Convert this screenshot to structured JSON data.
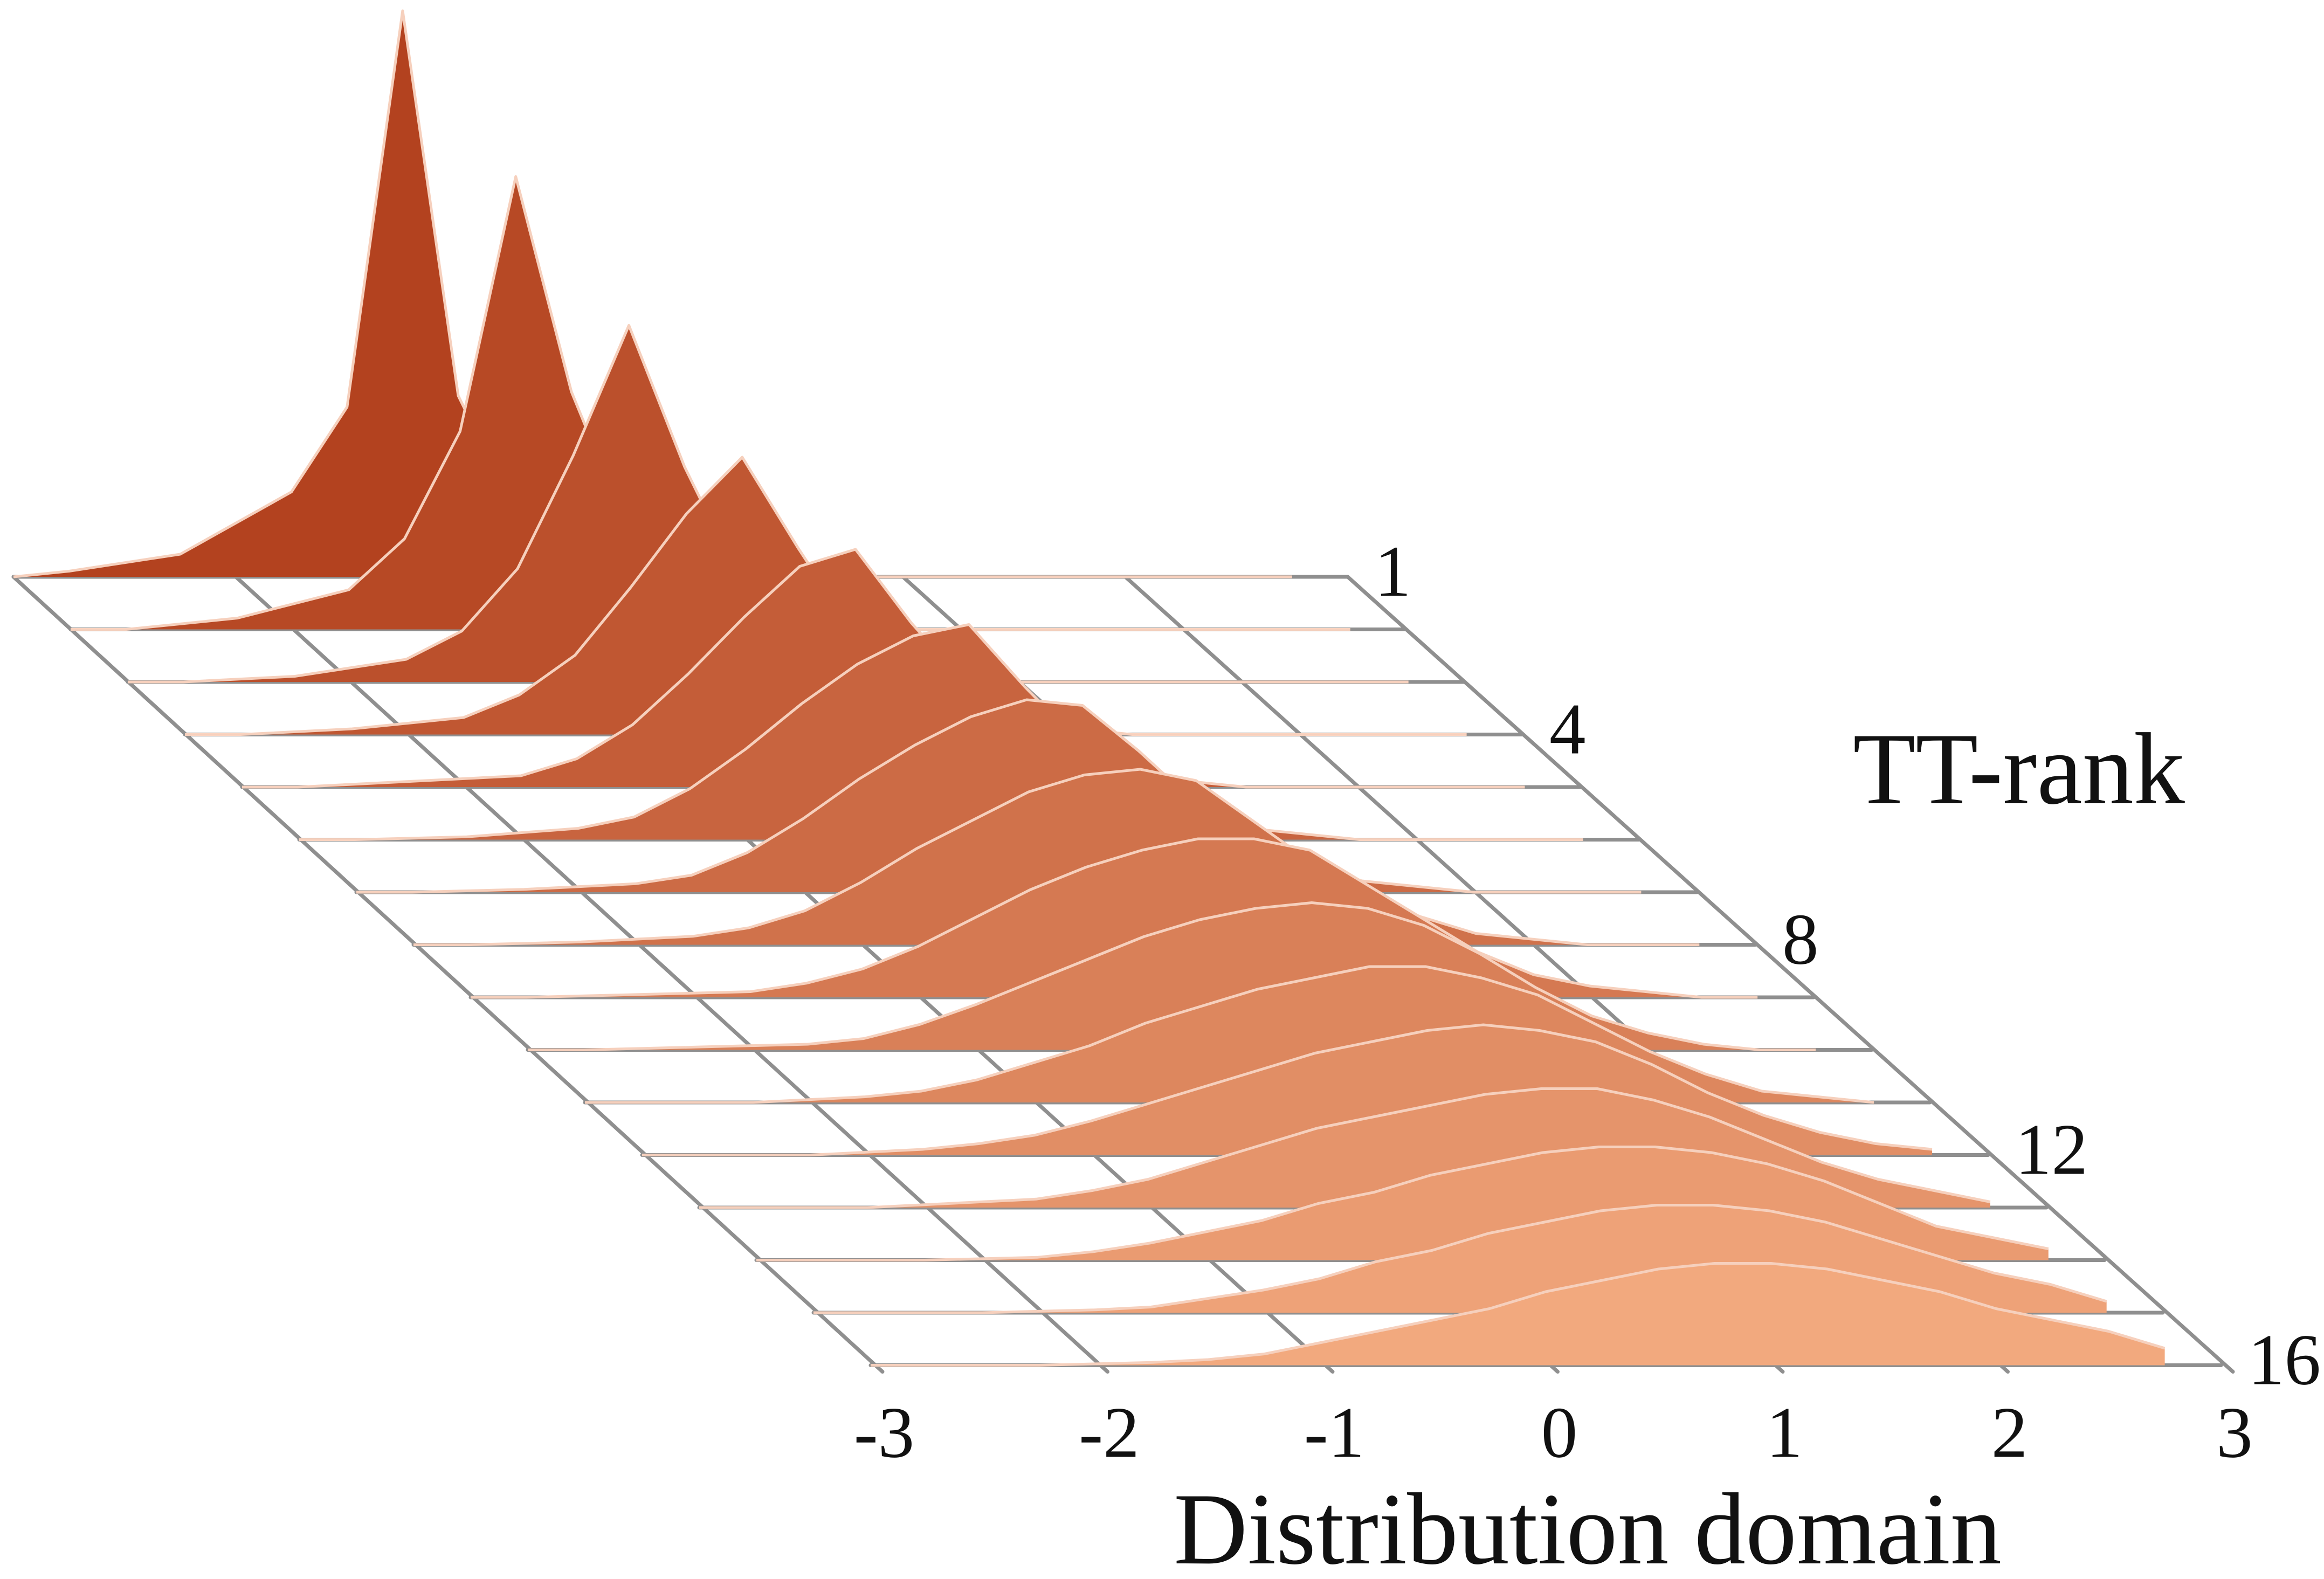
{
  "chart_data": {
    "type": "ridgeline",
    "xlabel": "Distribution domain",
    "ylabel": "TT-rank",
    "xlim": [
      -3,
      3
    ],
    "x_ticks": [
      "-3",
      "-2",
      "-1",
      "0",
      "1",
      "2",
      "3"
    ],
    "rank_ticks": [
      {
        "rank": 1,
        "label": "1"
      },
      {
        "rank": 4,
        "label": "4"
      },
      {
        "rank": 8,
        "label": "8"
      },
      {
        "rank": 12,
        "label": "12"
      },
      {
        "rank": 16,
        "label": "16"
      }
    ],
    "colors": {
      "rank_low": "#b3421f",
      "rank_high": "#f2a97e",
      "grid": "#8f8f8f"
    },
    "x": [
      -2.75,
      -2.25,
      -1.75,
      -1.5,
      -1.25,
      -1.0,
      -0.75,
      -0.5,
      -0.25,
      0.0,
      0.25,
      0.5,
      0.75,
      1.0,
      1.25,
      1.5,
      1.75,
      2.0,
      2.25,
      2.5,
      2.75
    ],
    "series": [
      {
        "rank": 1,
        "values": [
          0.01,
          0.04,
          0.15,
          0.3,
          1.0,
          0.32,
          0.12,
          0.04,
          0.015,
          0.005,
          0,
          0,
          0,
          0,
          0,
          0,
          0,
          0,
          0,
          0,
          0
        ]
      },
      {
        "rank": 2,
        "values": [
          0,
          0.02,
          0.07,
          0.16,
          0.35,
          0.8,
          0.42,
          0.18,
          0.07,
          0.03,
          0.01,
          0,
          0,
          0,
          0,
          0,
          0,
          0,
          0,
          0,
          0
        ]
      },
      {
        "rank": 3,
        "values": [
          0,
          0.01,
          0.04,
          0.09,
          0.2,
          0.4,
          0.63,
          0.38,
          0.18,
          0.09,
          0.04,
          0.015,
          0.005,
          0,
          0,
          0,
          0,
          0,
          0,
          0,
          0
        ]
      },
      {
        "rank": 4,
        "values": [
          0,
          0.01,
          0.03,
          0.07,
          0.14,
          0.26,
          0.39,
          0.49,
          0.33,
          0.18,
          0.1,
          0.05,
          0.02,
          0.01,
          0,
          0,
          0,
          0,
          0,
          0,
          0
        ]
      },
      {
        "rank": 5,
        "values": [
          0,
          0.01,
          0.02,
          0.05,
          0.11,
          0.2,
          0.3,
          0.39,
          0.42,
          0.29,
          0.18,
          0.1,
          0.05,
          0.02,
          0.01,
          0,
          0,
          0,
          0,
          0,
          0
        ]
      },
      {
        "rank": 6,
        "values": [
          0,
          0.005,
          0.02,
          0.04,
          0.09,
          0.16,
          0.24,
          0.31,
          0.36,
          0.38,
          0.27,
          0.17,
          0.1,
          0.05,
          0.02,
          0.01,
          0,
          0,
          0,
          0,
          0
        ]
      },
      {
        "rank": 7,
        "values": [
          0,
          0.005,
          0.015,
          0.03,
          0.07,
          0.13,
          0.2,
          0.26,
          0.31,
          0.34,
          0.33,
          0.25,
          0.16,
          0.1,
          0.05,
          0.02,
          0.01,
          0,
          0,
          0,
          0
        ]
      },
      {
        "rank": 8,
        "values": [
          0,
          0.005,
          0.015,
          0.03,
          0.06,
          0.11,
          0.17,
          0.22,
          0.27,
          0.3,
          0.31,
          0.29,
          0.22,
          0.15,
          0.09,
          0.05,
          0.02,
          0.01,
          0,
          0,
          0
        ]
      },
      {
        "rank": 9,
        "values": [
          0,
          0.005,
          0.01,
          0.025,
          0.05,
          0.09,
          0.14,
          0.19,
          0.23,
          0.26,
          0.28,
          0.28,
          0.26,
          0.2,
          0.14,
          0.08,
          0.04,
          0.02,
          0.01,
          0,
          0
        ]
      },
      {
        "rank": 10,
        "values": [
          0,
          0.005,
          0.01,
          0.02,
          0.045,
          0.08,
          0.12,
          0.16,
          0.2,
          0.23,
          0.25,
          0.26,
          0.25,
          0.22,
          0.17,
          0.11,
          0.06,
          0.03,
          0.01,
          0,
          0
        ]
      },
      {
        "rank": 11,
        "values": [
          0,
          0,
          0.01,
          0.02,
          0.04,
          0.07,
          0.1,
          0.14,
          0.17,
          0.2,
          0.22,
          0.24,
          0.24,
          0.22,
          0.19,
          0.14,
          0.09,
          0.05,
          0.02,
          0.01,
          0
        ]
      },
      {
        "rank": 12,
        "values": [
          0,
          0,
          0.01,
          0.02,
          0.035,
          0.06,
          0.09,
          0.12,
          0.15,
          0.18,
          0.2,
          0.22,
          0.23,
          0.22,
          0.2,
          0.16,
          0.11,
          0.07,
          0.04,
          0.02,
          0.01
        ]
      },
      {
        "rank": 13,
        "values": [
          0,
          0,
          0.01,
          0.015,
          0.03,
          0.05,
          0.08,
          0.11,
          0.14,
          0.16,
          0.18,
          0.2,
          0.21,
          0.21,
          0.19,
          0.16,
          0.12,
          0.08,
          0.05,
          0.03,
          0.01
        ]
      },
      {
        "rank": 14,
        "values": [
          0,
          0,
          0.005,
          0.015,
          0.03,
          0.05,
          0.07,
          0.1,
          0.12,
          0.15,
          0.17,
          0.19,
          0.2,
          0.2,
          0.19,
          0.17,
          0.14,
          0.1,
          0.06,
          0.04,
          0.02
        ]
      },
      {
        "rank": 15,
        "values": [
          0,
          0,
          0.005,
          0.01,
          0.025,
          0.04,
          0.06,
          0.09,
          0.11,
          0.14,
          0.16,
          0.18,
          0.19,
          0.19,
          0.18,
          0.16,
          0.13,
          0.1,
          0.07,
          0.05,
          0.02
        ]
      },
      {
        "rank": 16,
        "values": [
          0,
          0,
          0.005,
          0.01,
          0.02,
          0.04,
          0.06,
          0.08,
          0.1,
          0.13,
          0.15,
          0.17,
          0.18,
          0.18,
          0.17,
          0.15,
          0.13,
          0.1,
          0.08,
          0.06,
          0.03
        ]
      }
    ]
  }
}
